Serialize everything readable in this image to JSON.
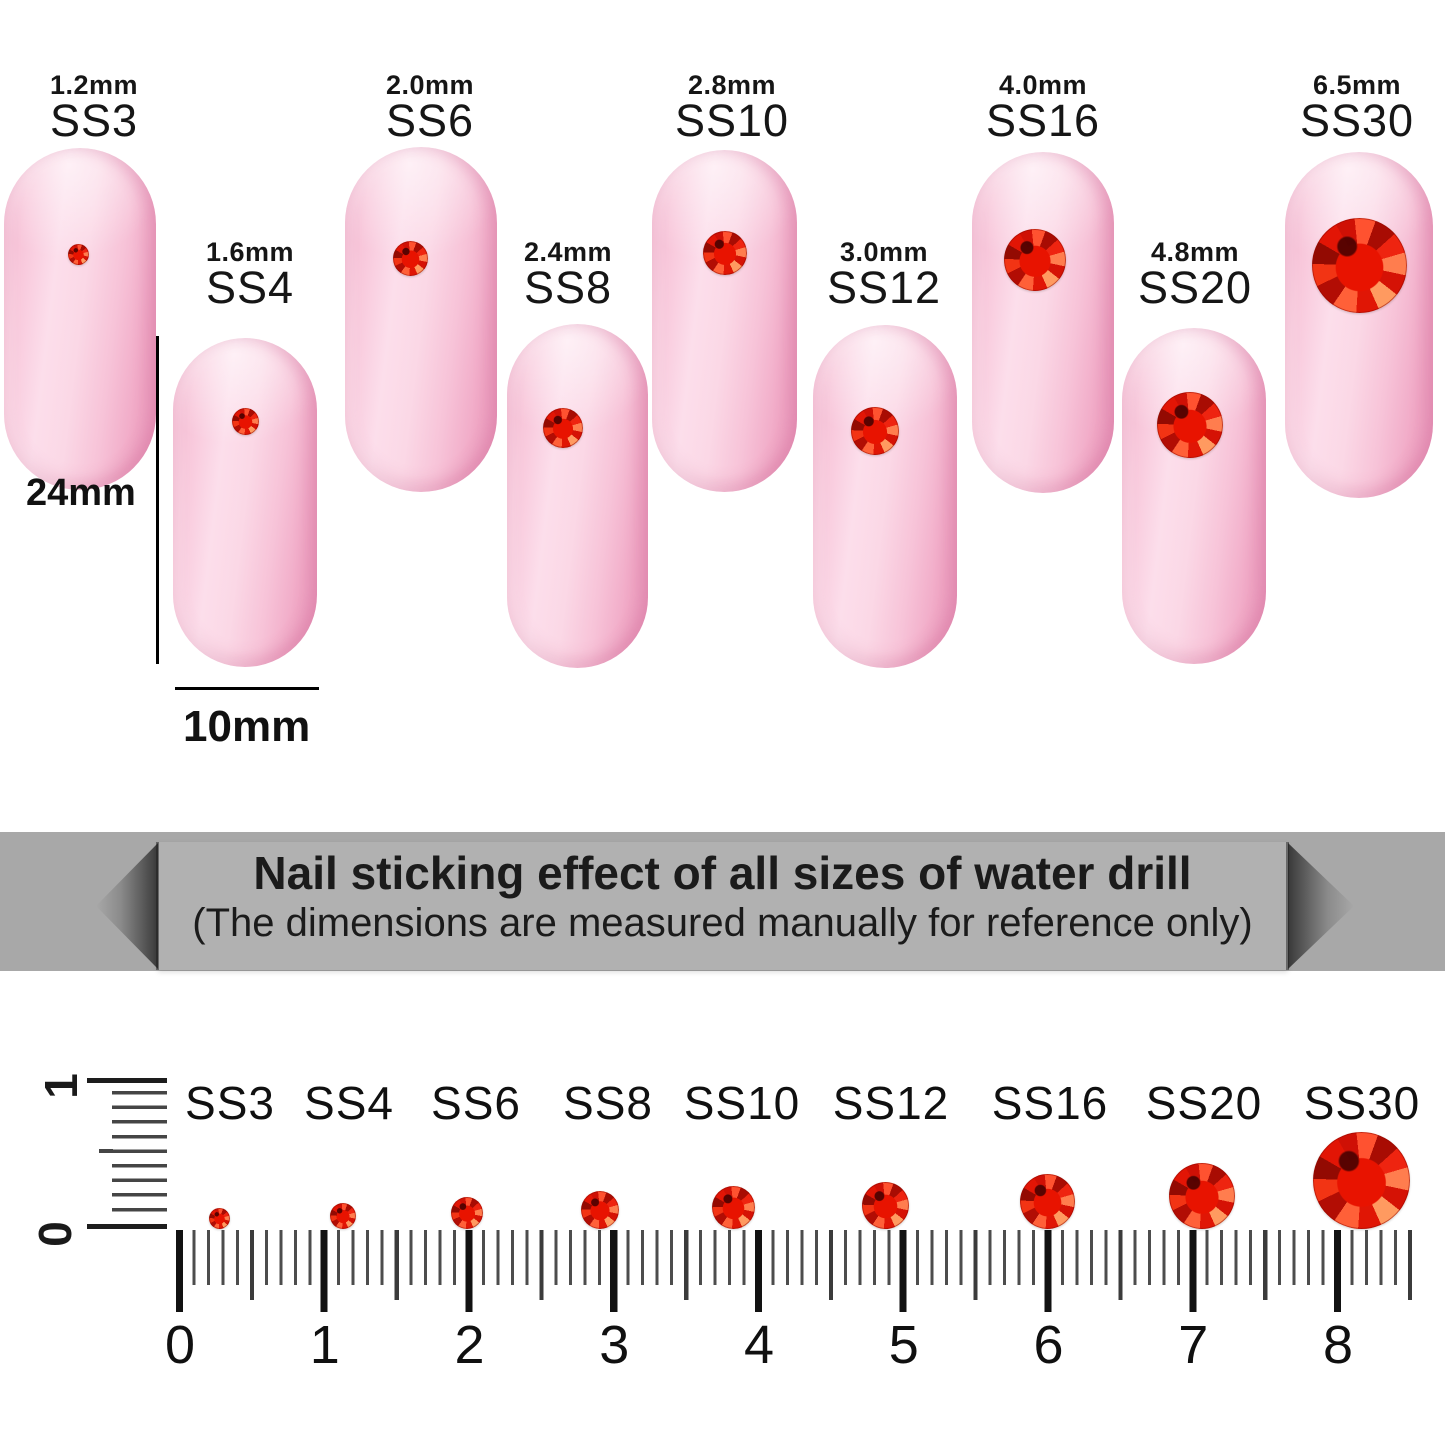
{
  "product_chart": {
    "type": "size-comparison",
    "description_of_items": "red flat-back rhinestones shown on pink nail tips and on a centimeter ruler",
    "sizes": [
      {
        "ss": "SS3",
        "mm": "1.2mm"
      },
      {
        "ss": "SS4",
        "mm": "1.6mm"
      },
      {
        "ss": "SS6",
        "mm": "2.0mm"
      },
      {
        "ss": "SS8",
        "mm": "2.4mm"
      },
      {
        "ss": "SS10",
        "mm": "2.8mm"
      },
      {
        "ss": "SS12",
        "mm": "3.0mm"
      },
      {
        "ss": "SS16",
        "mm": "4.0mm"
      },
      {
        "ss": "SS20",
        "mm": "4.8mm"
      },
      {
        "ss": "SS30",
        "mm": "6.5mm"
      }
    ]
  },
  "nail_dimensions": {
    "length_label": "24mm",
    "width_label": "10mm"
  },
  "banner": {
    "title": "Nail sticking effect of all sizes of water drill",
    "subtitle": "(The dimensions are measured manually for reference only)"
  },
  "ruler": {
    "corner_top_digit": "1",
    "corner_bottom_digit": "0",
    "cm_numbers": [
      "0",
      "1",
      "2",
      "3",
      "4",
      "5",
      "6",
      "7",
      "8"
    ],
    "stone_labels": [
      "SS3",
      "SS4",
      "SS6",
      "SS8",
      "SS10",
      "SS12",
      "SS16",
      "SS20",
      "SS30"
    ]
  },
  "colors": {
    "stone_red": "#e21404",
    "nail_pink": "#f8c9dc",
    "banner_gray": "#a8a8a8",
    "text_black": "#111111"
  }
}
